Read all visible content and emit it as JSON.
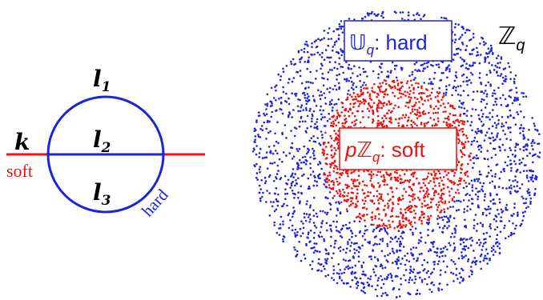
{
  "feynman": {
    "label_l1": "l",
    "sub_l1": "1",
    "label_l2": "l",
    "sub_l2": "2",
    "label_l3": "l",
    "sub_l3": "3",
    "label_k": "k",
    "soft_label": "soft",
    "hard_label": "hard"
  },
  "disk": {
    "outer_label": "ℤ",
    "outer_sub": "q",
    "hard_box_pre": "𝕌",
    "hard_box_sub": "q",
    "hard_box_post": ": hard",
    "soft_box_pre": "p",
    "soft_box_z": "ℤ",
    "soft_box_sub": "q",
    "soft_box_post": ": soft"
  },
  "colors": {
    "blue": "#1f24d6",
    "red": "#ee1111",
    "black": "#000000"
  }
}
